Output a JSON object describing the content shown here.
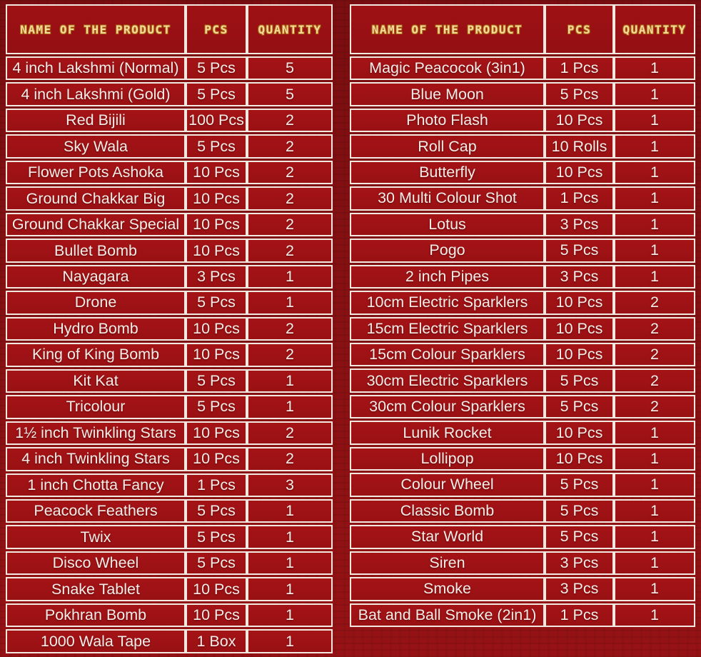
{
  "colors": {
    "background_red": "#891113",
    "cell_red": "#a41316",
    "header_cell_red": "#9e1114",
    "border_white": "#f2e8df",
    "header_text_gold": "#f4d89e",
    "row_text_white": "#f6ede8"
  },
  "tables": [
    {
      "id": "left",
      "columns": [
        "NAME OF THE PRODUCT",
        "PCS",
        "QUANTITY"
      ],
      "rows": [
        [
          "4 inch Lakshmi (Normal)",
          "5 Pcs",
          "5"
        ],
        [
          "4 inch Lakshmi (Gold)",
          "5 Pcs",
          "5"
        ],
        [
          "Red Bijili",
          "100 Pcs",
          "2"
        ],
        [
          "Sky Wala",
          "5 Pcs",
          "2"
        ],
        [
          "Flower Pots Ashoka",
          "10 Pcs",
          "2"
        ],
        [
          "Ground Chakkar Big",
          "10 Pcs",
          "2"
        ],
        [
          "Ground Chakkar Special",
          "10 Pcs",
          "2"
        ],
        [
          "Bullet Bomb",
          "10 Pcs",
          "2"
        ],
        [
          "Nayagara",
          "3 Pcs",
          "1"
        ],
        [
          "Drone",
          "5 Pcs",
          "1"
        ],
        [
          "Hydro Bomb",
          "10 Pcs",
          "2"
        ],
        [
          "King of King Bomb",
          "10 Pcs",
          "2"
        ],
        [
          "Kit Kat",
          "5 Pcs",
          "1"
        ],
        [
          "Tricolour",
          "5 Pcs",
          "1"
        ],
        [
          "1½ inch Twinkling Stars",
          "10 Pcs",
          "2"
        ],
        [
          "4 inch Twinkling Stars",
          "10 Pcs",
          "2"
        ],
        [
          "1 inch Chotta Fancy",
          "1 Pcs",
          "3"
        ],
        [
          "Peacock Feathers",
          "5 Pcs",
          "1"
        ],
        [
          "Twix",
          "5 Pcs",
          "1"
        ],
        [
          "Disco Wheel",
          "5 Pcs",
          "1"
        ],
        [
          "Snake Tablet",
          "10 Pcs",
          "1"
        ],
        [
          "Pokhran Bomb",
          "10 Pcs",
          "1"
        ],
        [
          "1000 Wala Tape",
          "1 Box",
          "1"
        ]
      ]
    },
    {
      "id": "right",
      "columns": [
        "NAME OF THE PRODUCT",
        "PCS",
        "QUANTITY"
      ],
      "rows": [
        [
          "Magic Peacocok (3in1)",
          "1 Pcs",
          "1"
        ],
        [
          "Blue Moon",
          "5 Pcs",
          "1"
        ],
        [
          "Photo Flash",
          "10 Pcs",
          "1"
        ],
        [
          "Roll Cap",
          "10 Rolls",
          "1"
        ],
        [
          "Butterfly",
          "10 Pcs",
          "1"
        ],
        [
          "30 Multi Colour Shot",
          "1 Pcs",
          "1"
        ],
        [
          "Lotus",
          "3 Pcs",
          "1"
        ],
        [
          "Pogo",
          "5 Pcs",
          "1"
        ],
        [
          "2 inch Pipes",
          "3 Pcs",
          "1"
        ],
        [
          "10cm Electric Sparklers",
          "10 Pcs",
          "2"
        ],
        [
          "15cm Electric Sparklers",
          "10 Pcs",
          "2"
        ],
        [
          "15cm Colour Sparklers",
          "10 Pcs",
          "2"
        ],
        [
          "30cm Electric Sparklers",
          "5 Pcs",
          "2"
        ],
        [
          "30cm Colour Sparklers",
          "5 Pcs",
          "2"
        ],
        [
          "Lunik Rocket",
          "10 Pcs",
          "1"
        ],
        [
          "Lollipop",
          "10 Pcs",
          "1"
        ],
        [
          "Colour Wheel",
          "5 Pcs",
          "1"
        ],
        [
          "Classic Bomb",
          "5 Pcs",
          "1"
        ],
        [
          "Star World",
          "5 Pcs",
          "1"
        ],
        [
          "Siren",
          "3 Pcs",
          "1"
        ],
        [
          "Smoke",
          "3 Pcs",
          "1"
        ],
        [
          "Bat and Ball Smoke (2in1)",
          "1 Pcs",
          "1"
        ]
      ]
    }
  ]
}
